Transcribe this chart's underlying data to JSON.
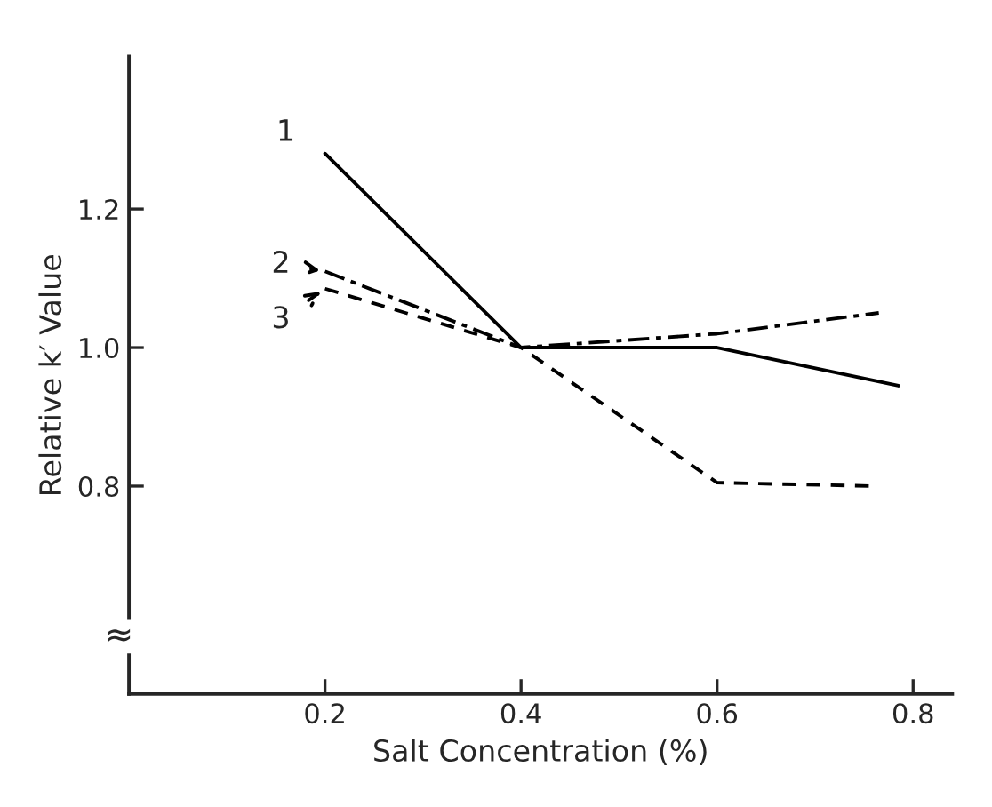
{
  "chart_data": {
    "type": "line",
    "xlabel": "Salt Concentration (%)",
    "ylabel": "Relative k′ Value",
    "xlim": [
      0,
      0.84
    ],
    "ylim": [
      0.5,
      1.42
    ],
    "xticks": [
      0.2,
      0.4,
      0.6,
      0.8
    ],
    "yticks": [
      0.8,
      {
        "value": 1.0,
        "label": "1.0"
      },
      1.2
    ],
    "grid": false,
    "legend": "left",
    "series": [
      {
        "name": "1",
        "color": "#000000",
        "line_style": "solid",
        "x": [
          0.2,
          0.4,
          0.6,
          0.785
        ],
        "values": [
          1.28,
          1.0,
          1.0,
          0.945
        ]
      },
      {
        "name": "2",
        "color": "#000000",
        "line_style": "dashdot",
        "x": [
          0.2,
          0.4,
          0.6,
          0.765
        ],
        "values": [
          1.11,
          1.0,
          1.02,
          1.05
        ]
      },
      {
        "name": "3",
        "color": "#000000",
        "line_style": "dashed",
        "x": [
          0.2,
          0.4,
          0.6,
          0.76
        ],
        "values": [
          1.085,
          1.0,
          0.805,
          0.8
        ]
      }
    ],
    "annotations": [
      "≈"
    ]
  }
}
